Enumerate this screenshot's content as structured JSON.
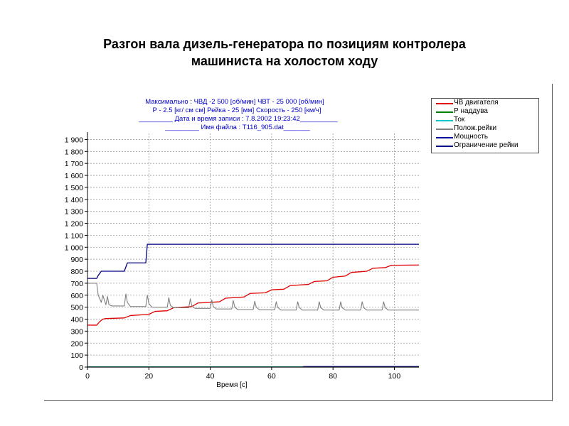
{
  "page": {
    "title_line1": "Разгон вала дизель-генератора по позициям контролера",
    "title_line2": "машиниста на холостом ходу"
  },
  "header": {
    "line1": "Максимально :   ЧВД -2 500  [об/мин]    ЧВТ - 25 000 [об/мин]",
    "line2": "Р - 2.5 [кг/ см см]    Рейка - 25 [мм]  Скорость - 250 [км/ч]",
    "line3": "_________ Дата и время записи : 7.8.2002 19:23:42__________",
    "line4": "_________ Имя файла : T116_905.dat_______"
  },
  "colors": {
    "red": "#e00000",
    "green": "#008000",
    "cyan": "#00c8c8",
    "gray": "#808080",
    "blue": "#0000a0",
    "navy": "#000080",
    "header_text": "#0000cc"
  },
  "chart_data": {
    "type": "line",
    "xlabel": "Время [с]",
    "ylabel": "",
    "xlim": [
      0,
      108
    ],
    "ylim": [
      0,
      1950
    ],
    "xticks": [
      0,
      20,
      40,
      60,
      80,
      100
    ],
    "yticks": [
      0,
      100,
      200,
      300,
      400,
      500,
      600,
      700,
      800,
      900,
      1000,
      1100,
      1200,
      1300,
      1400,
      1500,
      1600,
      1700,
      1800,
      1900
    ],
    "ytick_labels": [
      "0",
      "100",
      "200",
      "300",
      "400",
      "500",
      "600",
      "700",
      "800",
      "900",
      "1 000",
      "1 100",
      "1 200",
      "1 300",
      "1 400",
      "1 500",
      "1 600",
      "1 700",
      "1 800",
      "1 900"
    ],
    "grid": true,
    "legend_position": "right",
    "series": [
      {
        "name": "ЧВ двигателя",
        "color": "#e00000",
        "x": [
          0,
          3,
          4,
          5,
          6,
          12,
          14,
          20,
          22,
          26,
          28,
          34,
          36,
          43,
          45,
          51,
          53,
          58,
          60,
          64,
          66,
          72,
          74,
          78,
          80,
          84,
          86,
          91,
          93,
          97,
          99,
          108
        ],
        "y": [
          350,
          350,
          380,
          400,
          405,
          410,
          430,
          440,
          465,
          470,
          495,
          505,
          535,
          545,
          575,
          585,
          615,
          620,
          645,
          650,
          680,
          690,
          715,
          720,
          750,
          760,
          790,
          800,
          825,
          830,
          850,
          852
        ]
      },
      {
        "name": "Р наддува",
        "color": "#008000",
        "x": [
          0,
          108
        ],
        "y": [
          0,
          0
        ]
      },
      {
        "name": "Ток",
        "color": "#00c8c8",
        "x": [
          0,
          108
        ],
        "y": [
          3,
          3
        ]
      },
      {
        "name": "Полож.рейки",
        "color": "#808080",
        "x": [
          0,
          3,
          3.5,
          4.5,
          5,
          6,
          6.5,
          7,
          8,
          12,
          12.5,
          13,
          14,
          19,
          19.5,
          20,
          21,
          26,
          26.5,
          27,
          28,
          33,
          33.5,
          34,
          35,
          40,
          40.5,
          41,
          42,
          47,
          47.5,
          48,
          49,
          54,
          54.5,
          55,
          56,
          61,
          61.5,
          62,
          63,
          68,
          68.5,
          69,
          70,
          75,
          75.5,
          76,
          77,
          82,
          82.5,
          83,
          84,
          89,
          89.5,
          90,
          91,
          96,
          96.5,
          97,
          98,
          102,
          108
        ],
        "y": [
          700,
          700,
          600,
          540,
          600,
          520,
          590,
          520,
          510,
          510,
          610,
          540,
          505,
          505,
          600,
          530,
          500,
          500,
          580,
          515,
          495,
          495,
          570,
          510,
          490,
          490,
          560,
          505,
          485,
          485,
          555,
          500,
          480,
          480,
          550,
          500,
          478,
          478,
          545,
          498,
          476,
          476,
          545,
          497,
          476,
          476,
          545,
          496,
          476,
          476,
          545,
          496,
          476,
          476,
          545,
          496,
          476,
          476,
          545,
          496,
          476,
          476,
          476
        ]
      },
      {
        "name": "Мощность",
        "color": "#0000a0",
        "x": [
          0,
          70,
          70.5,
          108
        ],
        "y": [
          0,
          0,
          5,
          5
        ]
      },
      {
        "name": "Ограничение рейки",
        "color": "#000080",
        "x": [
          0,
          3,
          3.5,
          4.5,
          12,
          13,
          19,
          19.5,
          108
        ],
        "y": [
          740,
          740,
          765,
          800,
          800,
          870,
          870,
          1025,
          1025
        ]
      }
    ]
  }
}
